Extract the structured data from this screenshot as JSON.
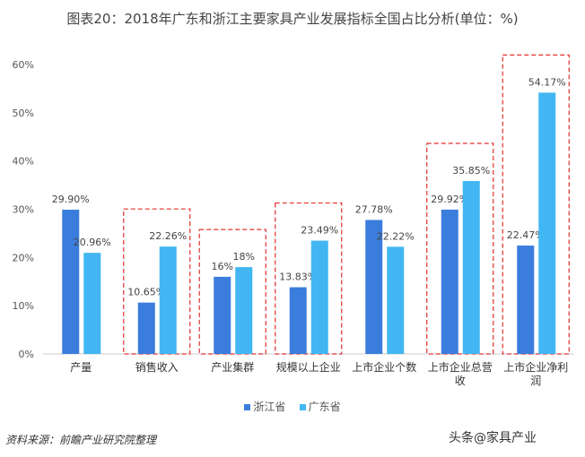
{
  "title": "图表20：2018年广东和浙江主要家具产业发展指标全国占比分析(单位：%)",
  "source": "资料来源：前瞻产业研究院整理",
  "watermark": "头条@家具产业",
  "chart_data": {
    "type": "bar",
    "title": "图表20：2018年广东和浙江主要家具产业发展指标全国占比分析(单位：%)",
    "categories": [
      "产量",
      "销售收入",
      "产业集群",
      "规模以上企业",
      "上市企业个数",
      "上市企业总营收",
      "上市企业净利润"
    ],
    "series": [
      {
        "name": "浙江省",
        "values": [
          29.9,
          10.65,
          16,
          13.83,
          27.78,
          29.92,
          22.47
        ],
        "labels": [
          "29.90%",
          "10.65%",
          "16%",
          "13.83%",
          "27.78%",
          "29.92%",
          "22.47%"
        ],
        "color": "#3b7ddd"
      },
      {
        "name": "广东省",
        "values": [
          20.96,
          22.26,
          18,
          23.49,
          22.22,
          35.85,
          54.17
        ],
        "labels": [
          "20.96%",
          "22.26%",
          "18%",
          "23.49%",
          "22.22%",
          "35.85%",
          "54.17%"
        ],
        "color": "#41b6f2"
      }
    ],
    "highlighted_categories": [
      "销售收入",
      "产业集群",
      "规模以上企业",
      "上市企业总营收",
      "上市企业净利润"
    ],
    "ylim": [
      0,
      60
    ],
    "yticks": [
      "0%",
      "10%",
      "20%",
      "30%",
      "40%",
      "50%",
      "60%"
    ],
    "grid": false,
    "legend": "bottom"
  }
}
